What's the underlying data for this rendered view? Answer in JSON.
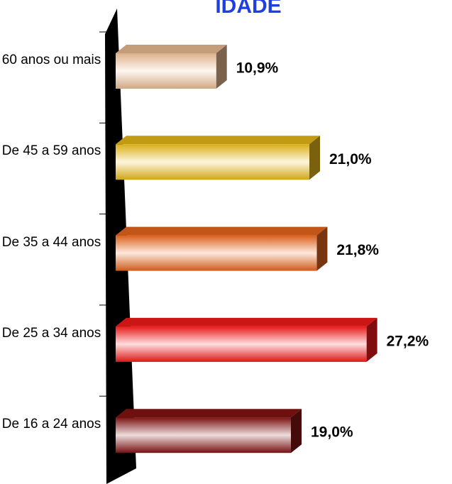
{
  "chart_data": {
    "type": "bar",
    "orientation": "horizontal",
    "title": "IDADE",
    "categories": [
      "60 anos ou mais",
      "De 45 a 59 anos",
      "De 35 a 44 anos",
      "De 25 a 34 anos",
      "De 16 a 24 anos"
    ],
    "values": [
      10.9,
      21.0,
      21.8,
      27.2,
      19.0
    ],
    "value_labels": [
      "10,9%",
      "21,0%",
      "21,8%",
      "27,2%",
      "19,0%"
    ],
    "colors": [
      "#f5c49a",
      "#f2c21a",
      "#f26a1e",
      "#ff1c1c",
      "#8a1414"
    ],
    "title_color": "#1f3fe0"
  }
}
